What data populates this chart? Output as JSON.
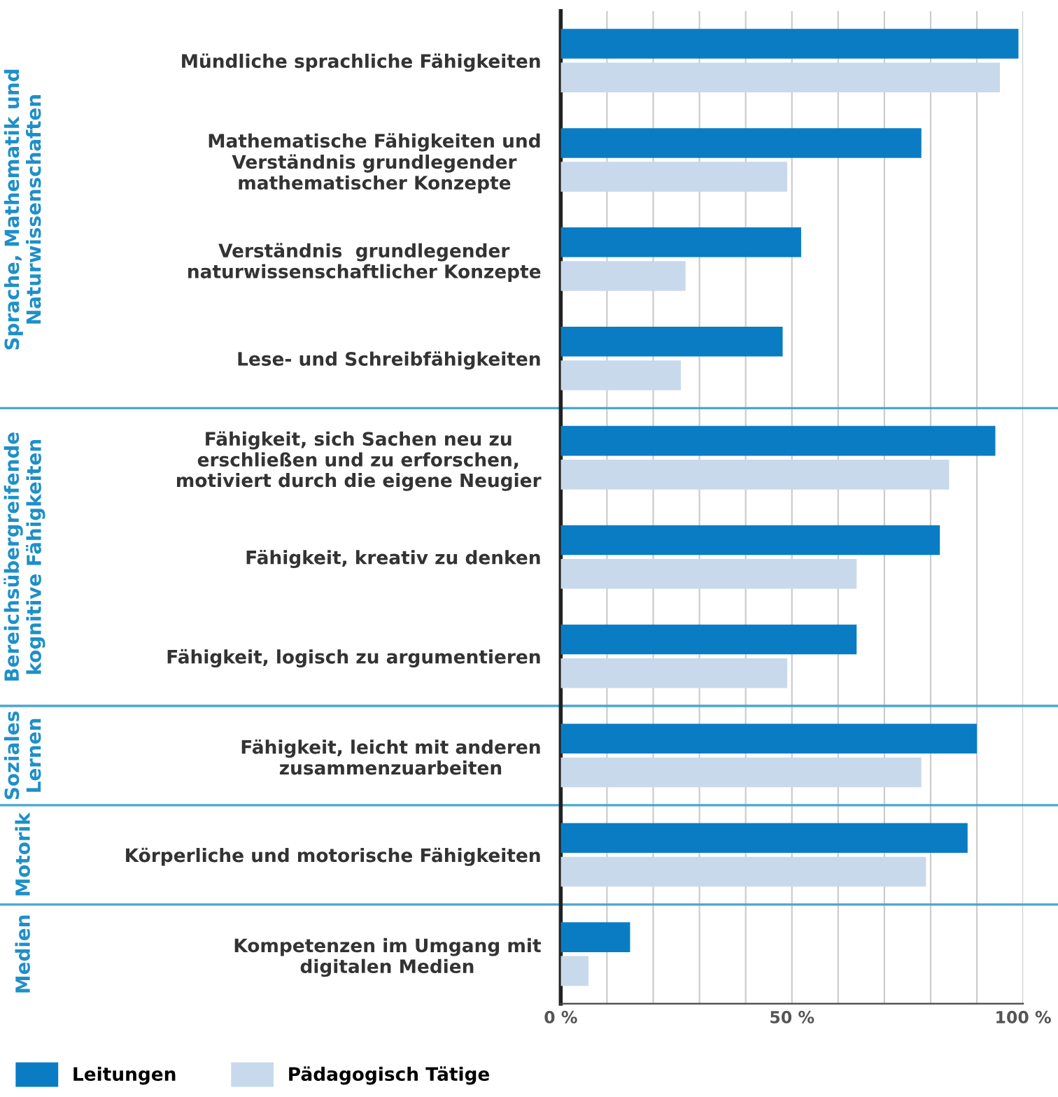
{
  "chart_data": {
    "type": "bar",
    "orientation": "horizontal",
    "categories": [
      "Mündliche sprachliche Fähigkeiten",
      "Mathematische Fähigkeiten und\nVerständnis grundlegender\nmathematischer Konzepte",
      "Verständnis  grundlegender\nnaturwissenschaftlicher Konzepte",
      "Lese- und Schreibfähigkeiten",
      "Fähigkeit, sich Sachen neu zu\nerschließen und zu erforschen,\nmotiviert durch die eigene Neugier",
      "Fähigkeit, kreativ zu denken",
      "Fähigkeit, logisch zu argumentieren",
      "Fähigkeit, leicht mit anderen\nzusammenzuarbeiten",
      "Körperliche und motorische Fähigkeiten",
      "Kompetenzen im Umgang mit\ndigitalen Medien"
    ],
    "series": [
      {
        "name": "Leitungen",
        "color": "#0a7cc4",
        "values": [
          99,
          78,
          52,
          48,
          94,
          82,
          64,
          90,
          88,
          15
        ]
      },
      {
        "name": "Pädagogisch Tätige",
        "color": "#c9d9ec",
        "values": [
          95,
          49,
          27,
          26,
          84,
          64,
          49,
          78,
          79,
          6
        ]
      }
    ],
    "xlim": [
      0,
      100
    ],
    "xticks": [
      {
        "value": 0,
        "label": "0 %"
      },
      {
        "value": 10,
        "label": null
      },
      {
        "value": 20,
        "label": null
      },
      {
        "value": 30,
        "label": null
      },
      {
        "value": 40,
        "label": null
      },
      {
        "value": 50,
        "label": "50 %"
      },
      {
        "value": 60,
        "label": null
      },
      {
        "value": 70,
        "label": null
      },
      {
        "value": 80,
        "label": null
      },
      {
        "value": 90,
        "label": null
      },
      {
        "value": 100,
        "label": "100 %"
      }
    ],
    "grid": "x",
    "legend": "bottom left",
    "annotations": [
      "Sprache, Mathematik und\nNaturwissenschaften",
      "Bereichsübergreifende\nkognitive Fähigkeiten",
      "Soziales\nLernen",
      "Motorik",
      "Medien"
    ]
  }
}
